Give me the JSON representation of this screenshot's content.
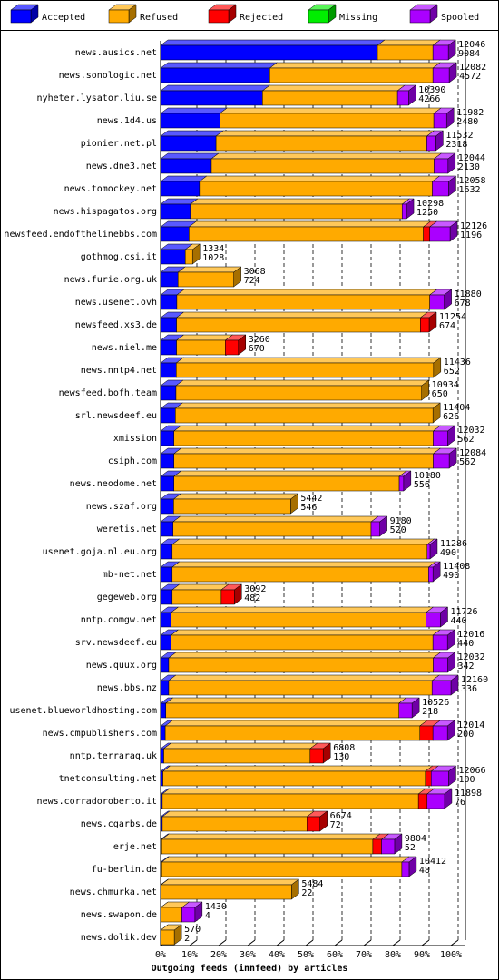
{
  "chart_data": {
    "type": "stacked-bar-3d",
    "orientation": "horizontal",
    "x_label": "Outgoing feeds (innfeed) by articles",
    "categories": [
      "news.ausics.net",
      "news.sonologic.net",
      "nyheter.lysator.liu.se",
      "news.1d4.us",
      "pionier.net.pl",
      "news.dne3.net",
      "news.tomockey.net",
      "news.hispagatos.org",
      "newsfeed.endofthelinebbs.com",
      "gothmog.csi.it",
      "news.furie.org.uk",
      "news.usenet.ovh",
      "newsfeed.xs3.de",
      "news.niel.me",
      "news.nntp4.net",
      "newsfeed.bofh.team",
      "srl.newsdeef.eu",
      "xmission",
      "csiph.com",
      "news.neodome.net",
      "news.szaf.org",
      "weretis.net",
      "usenet.goja.nl.eu.org",
      "mb-net.net",
      "gegeweb.org",
      "nntp.comgw.net",
      "srv.newsdeef.eu",
      "news.quux.org",
      "news.bbs.nz",
      "usenet.blueworldhosting.com",
      "news.cmpublishers.com",
      "nntp.terraraq.uk",
      "tnetconsulting.net",
      "news.corradoroberto.it",
      "news.cgarbs.de",
      "erje.net",
      "fu-berlin.de",
      "news.chmurka.net",
      "news.swapon.de",
      "news.dolik.dev"
    ],
    "series": [
      {
        "name": "Accepted",
        "color": "#0000ff",
        "values": [
          74.7,
          37.6,
          35.1,
          20.4,
          19.1,
          17.5,
          13.4,
          10.3,
          9.8,
          8.5,
          6.0,
          5.6,
          5.5,
          5.5,
          5.4,
          5.3,
          5.1,
          4.6,
          4.6,
          4.6,
          4.5,
          4.3,
          4.0,
          4.0,
          4.0,
          3.6,
          3.6,
          2.8,
          2.8,
          1.8,
          1.6,
          1.1,
          0.8,
          0.6,
          0.6,
          0.4,
          0.4,
          0.2,
          0.03,
          0.02
        ]
      },
      {
        "name": "Refused",
        "color": "#ffaa00",
        "values": [
          19.1,
          56.2,
          46.5,
          73.7,
          72.6,
          76.7,
          80.2,
          72.9,
          80.7,
          2.5,
          19.2,
          87.1,
          84,
          16.8,
          88.6,
          84.6,
          88.7,
          89.3,
          89.3,
          77.6,
          40.3,
          68.2,
          87.8,
          88.3,
          16.9,
          87.8,
          90.2,
          91.1,
          90.7,
          80.3,
          87.7,
          50.4,
          90.4,
          88.2,
          49.8,
          72.7,
          82.7,
          44.9,
          7.3,
          4.7
        ]
      },
      {
        "name": "Rejected",
        "color": "#ff0000",
        "values": [
          0,
          0,
          0,
          0,
          0,
          0,
          0,
          0,
          2.2,
          0,
          0,
          0,
          3,
          4.5,
          0,
          0,
          0,
          0,
          0,
          0,
          0,
          0,
          0,
          0,
          4.5,
          0,
          0,
          0,
          0,
          0,
          4.5,
          4.5,
          2,
          3,
          4.5,
          3,
          0,
          0,
          0,
          0
        ]
      },
      {
        "name": "Missing",
        "color": "#00ee00",
        "values": [
          0,
          0,
          0,
          0,
          0,
          0,
          0,
          0,
          0,
          0,
          0,
          0,
          0,
          0,
          0,
          0,
          0,
          0,
          0,
          0,
          0,
          0,
          0,
          0,
          0,
          0,
          0,
          0,
          0,
          0,
          0,
          0,
          0,
          0,
          0,
          0,
          0,
          0,
          0,
          0
        ]
      },
      {
        "name": "Spooled",
        "color": "#aa00ff",
        "values": [
          5.3,
          5.6,
          3.8,
          4.4,
          3.1,
          4.8,
          5.6,
          1.5,
          7,
          0,
          0,
          5,
          0,
          0,
          0,
          0,
          0,
          5,
          5.5,
          1.5,
          0,
          3,
          1,
          1.5,
          0,
          5,
          5,
          5,
          6.5,
          4.5,
          5,
          0,
          6,
          6,
          0,
          4.5,
          2.5,
          0,
          4.5,
          0
        ]
      }
    ],
    "offered": [
      12046,
      12082,
      10390,
      11982,
      11532,
      12044,
      12058,
      10298,
      12126,
      1334,
      3068,
      11880,
      11254,
      3260,
      11436,
      10934,
      11404,
      12032,
      12084,
      10180,
      5442,
      9180,
      11286,
      11408,
      3092,
      11726,
      12016,
      12032,
      12160,
      10526,
      12014,
      6808,
      12066,
      11898,
      6674,
      9804,
      10412,
      5484,
      1430,
      570
    ],
    "accepted": [
      9084,
      4572,
      4266,
      2480,
      2318,
      2130,
      1632,
      1250,
      1196,
      1028,
      724,
      678,
      674,
      670,
      652,
      650,
      626,
      562,
      562,
      556,
      546,
      520,
      490,
      490,
      482,
      440,
      440,
      342,
      336,
      218,
      200,
      130,
      100,
      76,
      72,
      52,
      48,
      22,
      4,
      2
    ],
    "xlim": [
      0,
      105
    ],
    "xticks": [
      {
        "value": 0,
        "label": "0%"
      },
      {
        "value": 10,
        "label": "10%"
      },
      {
        "value": 20,
        "label": "20%"
      },
      {
        "value": 30,
        "label": "30%"
      },
      {
        "value": 40,
        "label": "40%"
      },
      {
        "value": 50,
        "label": "50%"
      },
      {
        "value": 60,
        "label": "60%"
      },
      {
        "value": 70,
        "label": "70%"
      },
      {
        "value": 80,
        "label": "80%"
      },
      {
        "value": 90,
        "label": "90%"
      },
      {
        "value": 100,
        "label": "100%"
      }
    ],
    "grid": true
  }
}
